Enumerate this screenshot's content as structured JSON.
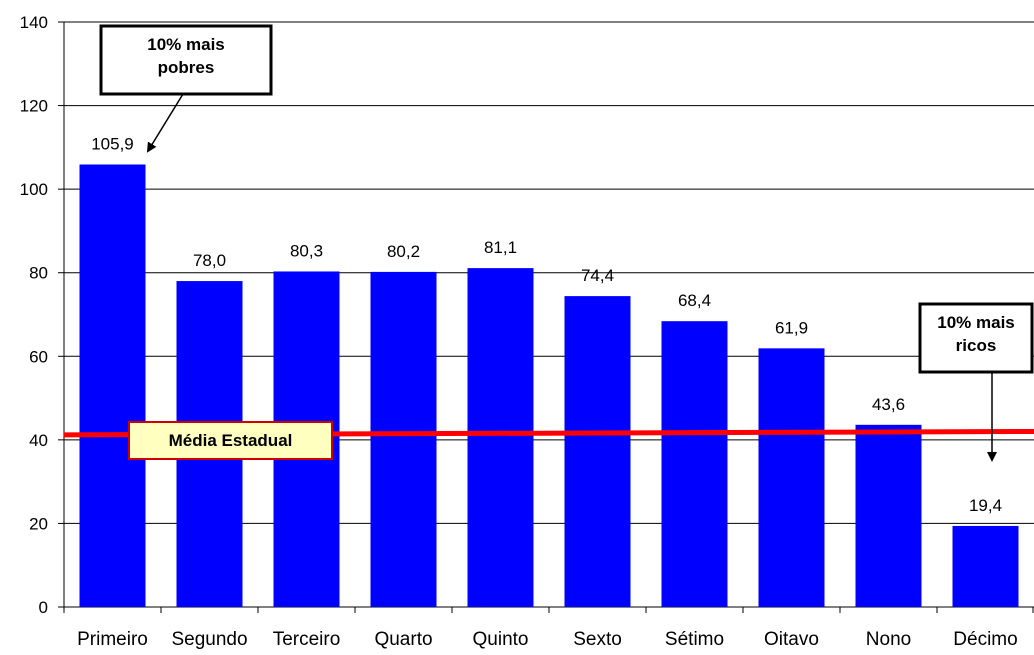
{
  "chart_data": {
    "type": "bar",
    "categories": [
      "Primeiro",
      "Segundo",
      "Terceiro",
      "Quarto",
      "Quinto",
      "Sexto",
      "Sétimo",
      "Oitavo",
      "Nono",
      "Décimo"
    ],
    "values": [
      105.9,
      78.0,
      80.3,
      80.2,
      81.1,
      74.4,
      68.4,
      61.9,
      43.6,
      19.4
    ],
    "data_labels": [
      "105,9",
      "78,0",
      "80,3",
      "80,2",
      "81,1",
      "74,4",
      "68,4",
      "61,9",
      "43,6",
      "19,4"
    ],
    "ylim": [
      0,
      140
    ],
    "yticks": [
      0,
      20,
      40,
      60,
      80,
      100,
      120,
      140
    ],
    "grid": true,
    "reference_line": {
      "label": "Média Estadual",
      "value_start": 41.2,
      "value_end": 42.0,
      "color": "#ff0000"
    },
    "annotations": [
      {
        "id": "poorest",
        "lines": [
          "10% mais",
          "pobres"
        ],
        "points_to_category": 0
      },
      {
        "id": "richest",
        "lines": [
          "10% mais",
          "ricos"
        ],
        "points_to_category": 9
      }
    ],
    "colors": {
      "bar": "#0000ff",
      "grid": "#000000",
      "reference_label_bg": "#ffffc0",
      "reference_label_border": "#cc0000"
    }
  }
}
